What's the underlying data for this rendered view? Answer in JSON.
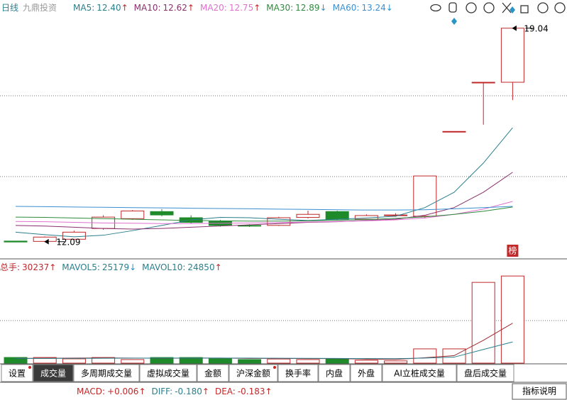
{
  "header": {
    "period": "日线",
    "name": "九鼎投资",
    "ma": [
      {
        "label": "MA5:",
        "value": "12.40",
        "arrow": "↑",
        "color": "#2a7f8c"
      },
      {
        "label": "MA10:",
        "value": "12.62",
        "arrow": "↑",
        "color": "#8a2f6e"
      },
      {
        "label": "MA20:",
        "value": "12.75",
        "arrow": "↑",
        "color": "#e070d0"
      },
      {
        "label": "MA30:",
        "value": "12.89",
        "arrow": "↓",
        "color": "#2e8b3e"
      },
      {
        "label": "MA60:",
        "value": "13.24",
        "arrow": "↓",
        "color": "#3a8fd0"
      }
    ]
  },
  "chart_data": [
    {
      "type": "candlestick",
      "categories": [
        null,
        null,
        null,
        null,
        null,
        null,
        null,
        null,
        null,
        null,
        null,
        null,
        null,
        null,
        null,
        null,
        null,
        null
      ],
      "open": [
        12.11,
        12.1,
        12.17,
        12.52,
        12.84,
        13.07,
        12.87,
        12.75,
        12.62,
        12.62,
        12.88,
        13.07,
        12.82,
        12.95,
        12.92,
        15.68,
        17.26,
        17.28
      ],
      "close": [
        12.08,
        12.24,
        12.4,
        12.89,
        13.09,
        12.96,
        12.72,
        12.62,
        12.6,
        12.87,
        12.98,
        12.82,
        12.94,
        12.96,
        14.23,
        15.68,
        17.28,
        19.04
      ],
      "high": [
        12.12,
        12.26,
        12.45,
        12.95,
        13.12,
        13.15,
        12.95,
        12.8,
        12.66,
        12.9,
        13.1,
        13.1,
        12.98,
        13.02,
        14.23,
        15.68,
        17.28,
        19.04
      ],
      "low": [
        12.07,
        12.09,
        12.15,
        12.48,
        12.8,
        12.92,
        12.68,
        12.58,
        12.57,
        12.6,
        12.85,
        12.8,
        12.8,
        12.9,
        12.85,
        15.68,
        15.9,
        16.7
      ],
      "up_color": "#c0282a",
      "down_color": "#1f8a2a",
      "ylim": [
        11.6,
        19.45
      ],
      "series": [
        {
          "name": "MA5",
          "color": "#2a7f8c",
          "values": [
            12.4,
            12.32,
            12.25,
            12.3,
            12.45,
            12.62,
            12.8,
            12.88,
            12.87,
            12.82,
            12.78,
            12.82,
            12.86,
            12.92,
            13.2,
            13.7,
            14.65,
            15.8
          ]
        },
        {
          "name": "MA10",
          "color": "#8a2f6e",
          "values": [
            12.62,
            12.6,
            12.56,
            12.52,
            12.5,
            12.52,
            12.56,
            12.6,
            12.64,
            12.68,
            12.72,
            12.74,
            12.78,
            12.82,
            12.95,
            13.2,
            13.7,
            14.35
          ]
        },
        {
          "name": "MA20",
          "color": "#e070d0",
          "values": [
            12.75,
            12.74,
            12.72,
            12.7,
            12.69,
            12.68,
            12.68,
            12.69,
            12.7,
            12.71,
            12.73,
            12.75,
            12.77,
            12.8,
            12.86,
            12.98,
            13.15,
            13.4
          ]
        },
        {
          "name": "MA30",
          "color": "#2e8b3e",
          "values": [
            12.89,
            12.88,
            12.86,
            12.84,
            12.82,
            12.8,
            12.78,
            12.77,
            12.76,
            12.76,
            12.77,
            12.79,
            12.81,
            12.85,
            12.9,
            12.98,
            13.08,
            13.22
          ]
        },
        {
          "name": "MA60",
          "color": "#3a8fd0",
          "values": [
            13.24,
            13.23,
            13.22,
            13.21,
            13.2,
            13.19,
            13.18,
            13.17,
            13.16,
            13.15,
            13.14,
            13.13,
            13.12,
            13.12,
            13.13,
            13.16,
            13.2,
            13.24
          ]
        }
      ],
      "annotations": [
        {
          "label": "19.04",
          "value": 19.04
        },
        {
          "label": "12.09",
          "value": 12.09
        }
      ],
      "badge": "榜"
    },
    {
      "type": "bar",
      "legend": [
        {
          "label": "总手:",
          "value": "30237",
          "arrow": "↑",
          "color": "#c0282a"
        },
        {
          "label": "MAVOL5:",
          "value": "25179",
          "arrow": "↓",
          "color": "#2a7f8c"
        },
        {
          "label": "MAVOL10:",
          "value": "24850",
          "arrow": "↑",
          "color": "#2a7f8c"
        }
      ],
      "values": [
        30237,
        30000,
        23000,
        30000,
        19000,
        30000,
        30000,
        23000,
        19000,
        22000,
        19000,
        23000,
        15000,
        12000,
        76000,
        76000,
        431000,
        465000
      ],
      "ylim": [
        0,
        530000
      ],
      "series": [
        {
          "name": "MAVOL5",
          "color": "#a0282e",
          "values": [
            25179,
            26000,
            27000,
            28000,
            27000,
            26000,
            27000,
            27000,
            25000,
            25000,
            24000,
            24000,
            21000,
            20000,
            29000,
            40000,
            122000,
            213000
          ]
        },
        {
          "name": "MAVOL10",
          "color": "#2a7f8c",
          "values": [
            24850,
            25000,
            25500,
            26000,
            26500,
            27000,
            27000,
            27000,
            27000,
            26000,
            25500,
            25000,
            24000,
            23500,
            27000,
            32000,
            73000,
            113000
          ]
        }
      ]
    }
  ],
  "tabs": [
    {
      "label": "设置",
      "dot": true,
      "selected": false
    },
    {
      "label": "成交量",
      "dot": false,
      "selected": true
    },
    {
      "label": "多周期成交量",
      "dot": false,
      "selected": false
    },
    {
      "label": "虚拟成交量",
      "dot": false,
      "selected": false
    },
    {
      "label": "金额",
      "dot": false,
      "selected": false
    },
    {
      "label": "沪深金额",
      "dot": true,
      "selected": false
    },
    {
      "label": "换手率",
      "dot": false,
      "selected": false
    },
    {
      "label": "内盘",
      "dot": false,
      "selected": false
    },
    {
      "label": "外盘",
      "dot": false,
      "selected": false
    },
    {
      "label": "AI立桩成交量",
      "dot": false,
      "selected": false
    },
    {
      "label": "盘后成交量",
      "dot": false,
      "selected": false
    }
  ],
  "indicator": {
    "items": [
      {
        "label": "MACD:",
        "value": "+0.006",
        "arrow": "↑",
        "color": "#c0282a"
      },
      {
        "label": "DIFF:",
        "value": "-0.180",
        "arrow": "↑",
        "color": "#2a7f8c"
      },
      {
        "label": "DEA:",
        "value": "-0.183",
        "arrow": "↑",
        "color": "#c0282a"
      }
    ],
    "button": "指标说明"
  }
}
